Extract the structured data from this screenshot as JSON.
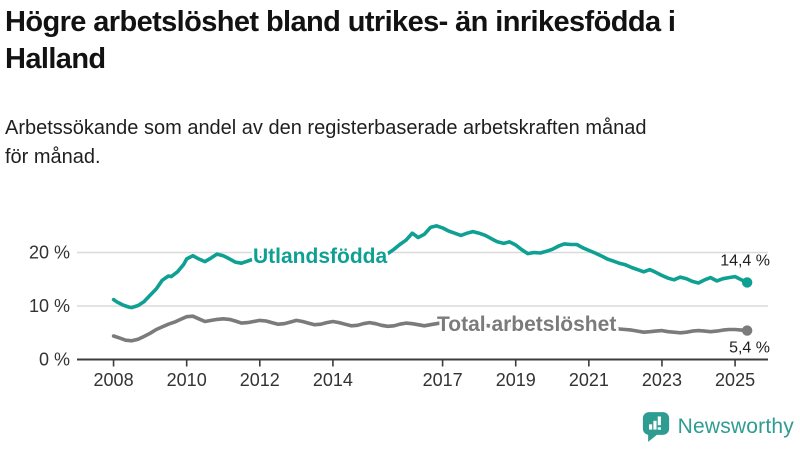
{
  "title": "Högre arbetslöshet bland utrikes- än inrikesfödda i\nHalland",
  "subtitle": "Arbetssökande som andel av den registerbaserade arbetskraften månad\nför månad.",
  "branding": {
    "logo_text": "Newsworthy",
    "logo_icon": "newsworthy-speech-bubble-bar-chart-icon",
    "logo_color": "#2f9c92"
  },
  "colors": {
    "series_teal": "#0fa094",
    "series_gray": "#7b7b7b",
    "gridline": "#dadada",
    "axis": "#3c3c3c",
    "tick_text": "#333333",
    "end_label_text": "#1f1f1f"
  },
  "chart_data": {
    "type": "line",
    "title": "Högre arbetslöshet bland utrikes- än inrikesfödda i Halland",
    "subtitle": "Arbetssökande som andel av den registerbaserade arbetskraften månad för månad.",
    "xlabel": "",
    "ylabel": "",
    "unit": "%",
    "grid": "horizontal",
    "legend_position": "on-chart-labels",
    "xlim": [
      2007.0,
      2025.9
    ],
    "ylim": [
      0,
      27
    ],
    "x_ticks": [
      2008,
      2010,
      2012,
      2014,
      2017,
      2019,
      2021,
      2023,
      2025
    ],
    "y_ticks": [
      {
        "value": 0,
        "label": "0 %"
      },
      {
        "value": 10,
        "label": "10 %"
      },
      {
        "value": 20,
        "label": "20 %"
      }
    ],
    "series": [
      {
        "name": "Utlandsfödda",
        "color": "#0fa094",
        "end_label": "14,4 %",
        "end_value": 14.4,
        "points": [
          [
            2008.0,
            11.2
          ],
          [
            2008.08,
            10.8
          ],
          [
            2008.25,
            10.2
          ],
          [
            2008.42,
            9.8
          ],
          [
            2008.5,
            9.7
          ],
          [
            2008.67,
            10.1
          ],
          [
            2008.83,
            10.8
          ],
          [
            2009.0,
            12.0
          ],
          [
            2009.17,
            13.2
          ],
          [
            2009.33,
            14.8
          ],
          [
            2009.5,
            15.6
          ],
          [
            2009.58,
            15.5
          ],
          [
            2009.75,
            16.4
          ],
          [
            2009.92,
            17.8
          ],
          [
            2010.0,
            18.8
          ],
          [
            2010.17,
            19.4
          ],
          [
            2010.33,
            18.8
          ],
          [
            2010.5,
            18.3
          ],
          [
            2010.67,
            19.0
          ],
          [
            2010.83,
            19.7
          ],
          [
            2011.0,
            19.4
          ],
          [
            2011.17,
            18.8
          ],
          [
            2011.33,
            18.2
          ],
          [
            2011.5,
            18.0
          ],
          [
            2011.67,
            18.4
          ],
          [
            2011.83,
            18.8
          ],
          [
            2012.0,
            19.0
          ],
          [
            2012.17,
            19.2
          ],
          [
            2012.33,
            18.8
          ],
          [
            2012.5,
            18.4
          ],
          [
            2012.67,
            18.2
          ],
          [
            2012.83,
            18.6
          ],
          [
            2013.0,
            19.1
          ],
          [
            2013.17,
            19.4
          ],
          [
            2013.33,
            19.0
          ],
          [
            2013.5,
            18.5
          ],
          [
            2013.67,
            18.2
          ],
          [
            2013.83,
            18.6
          ],
          [
            2014.0,
            19.0
          ],
          [
            2014.17,
            19.2
          ],
          [
            2014.33,
            18.8
          ],
          [
            2014.5,
            18.4
          ],
          [
            2014.67,
            18.2
          ],
          [
            2014.83,
            18.7
          ],
          [
            2015.0,
            19.3
          ],
          [
            2015.17,
            19.6
          ],
          [
            2015.33,
            19.3
          ],
          [
            2015.5,
            19.8
          ],
          [
            2015.67,
            20.6
          ],
          [
            2015.83,
            21.5
          ],
          [
            2016.0,
            22.3
          ],
          [
            2016.17,
            23.6
          ],
          [
            2016.33,
            22.8
          ],
          [
            2016.5,
            23.4
          ],
          [
            2016.67,
            24.7
          ],
          [
            2016.83,
            25.0
          ],
          [
            2017.0,
            24.6
          ],
          [
            2017.17,
            24.0
          ],
          [
            2017.33,
            23.6
          ],
          [
            2017.5,
            23.2
          ],
          [
            2017.67,
            23.6
          ],
          [
            2017.83,
            23.9
          ],
          [
            2018.0,
            23.6
          ],
          [
            2018.17,
            23.2
          ],
          [
            2018.33,
            22.6
          ],
          [
            2018.5,
            22.0
          ],
          [
            2018.67,
            21.7
          ],
          [
            2018.83,
            22.0
          ],
          [
            2019.0,
            21.4
          ],
          [
            2019.17,
            20.5
          ],
          [
            2019.33,
            19.8
          ],
          [
            2019.5,
            20.0
          ],
          [
            2019.67,
            19.9
          ],
          [
            2019.83,
            20.2
          ],
          [
            2020.0,
            20.6
          ],
          [
            2020.17,
            21.2
          ],
          [
            2020.33,
            21.6
          ],
          [
            2020.5,
            21.5
          ],
          [
            2020.67,
            21.5
          ],
          [
            2020.83,
            20.9
          ],
          [
            2021.0,
            20.4
          ],
          [
            2021.17,
            19.9
          ],
          [
            2021.33,
            19.4
          ],
          [
            2021.5,
            18.8
          ],
          [
            2021.67,
            18.4
          ],
          [
            2021.83,
            18.0
          ],
          [
            2022.0,
            17.7
          ],
          [
            2022.17,
            17.2
          ],
          [
            2022.33,
            16.8
          ],
          [
            2022.5,
            16.4
          ],
          [
            2022.67,
            16.8
          ],
          [
            2022.83,
            16.3
          ],
          [
            2023.0,
            15.7
          ],
          [
            2023.17,
            15.2
          ],
          [
            2023.33,
            14.9
          ],
          [
            2023.5,
            15.4
          ],
          [
            2023.67,
            15.1
          ],
          [
            2023.83,
            14.6
          ],
          [
            2024.0,
            14.3
          ],
          [
            2024.17,
            14.9
          ],
          [
            2024.33,
            15.3
          ],
          [
            2024.5,
            14.7
          ],
          [
            2024.67,
            15.1
          ],
          [
            2024.83,
            15.3
          ],
          [
            2025.0,
            15.5
          ],
          [
            2025.17,
            14.9
          ],
          [
            2025.33,
            14.4
          ]
        ]
      },
      {
        "name": "Total arbetslöshet",
        "color": "#7b7b7b",
        "end_label": "5,4 %",
        "end_value": 5.4,
        "points": [
          [
            2008.0,
            4.4
          ],
          [
            2008.17,
            4.0
          ],
          [
            2008.33,
            3.6
          ],
          [
            2008.5,
            3.5
          ],
          [
            2008.67,
            3.8
          ],
          [
            2008.83,
            4.3
          ],
          [
            2009.0,
            4.9
          ],
          [
            2009.17,
            5.6
          ],
          [
            2009.33,
            6.1
          ],
          [
            2009.5,
            6.6
          ],
          [
            2009.67,
            7.0
          ],
          [
            2009.83,
            7.5
          ],
          [
            2010.0,
            8.0
          ],
          [
            2010.17,
            8.1
          ],
          [
            2010.33,
            7.6
          ],
          [
            2010.5,
            7.1
          ],
          [
            2010.67,
            7.3
          ],
          [
            2010.83,
            7.5
          ],
          [
            2011.0,
            7.6
          ],
          [
            2011.17,
            7.5
          ],
          [
            2011.33,
            7.2
          ],
          [
            2011.5,
            6.8
          ],
          [
            2011.67,
            6.9
          ],
          [
            2011.83,
            7.1
          ],
          [
            2012.0,
            7.3
          ],
          [
            2012.17,
            7.2
          ],
          [
            2012.33,
            6.9
          ],
          [
            2012.5,
            6.6
          ],
          [
            2012.67,
            6.7
          ],
          [
            2012.83,
            7.0
          ],
          [
            2013.0,
            7.3
          ],
          [
            2013.17,
            7.1
          ],
          [
            2013.33,
            6.8
          ],
          [
            2013.5,
            6.5
          ],
          [
            2013.67,
            6.6
          ],
          [
            2013.83,
            6.9
          ],
          [
            2014.0,
            7.1
          ],
          [
            2014.17,
            6.9
          ],
          [
            2014.33,
            6.6
          ],
          [
            2014.5,
            6.3
          ],
          [
            2014.67,
            6.4
          ],
          [
            2014.83,
            6.7
          ],
          [
            2015.0,
            6.9
          ],
          [
            2015.17,
            6.7
          ],
          [
            2015.33,
            6.4
          ],
          [
            2015.5,
            6.2
          ],
          [
            2015.67,
            6.3
          ],
          [
            2015.83,
            6.6
          ],
          [
            2016.0,
            6.8
          ],
          [
            2016.17,
            6.7
          ],
          [
            2016.33,
            6.5
          ],
          [
            2016.5,
            6.3
          ],
          [
            2016.67,
            6.5
          ],
          [
            2016.83,
            6.7
          ],
          [
            2017.0,
            6.9
          ],
          [
            2017.17,
            6.7
          ],
          [
            2017.33,
            6.5
          ],
          [
            2017.5,
            6.3
          ],
          [
            2017.67,
            6.4
          ],
          [
            2017.83,
            6.6
          ],
          [
            2018.0,
            6.6
          ],
          [
            2018.17,
            6.4
          ],
          [
            2018.33,
            6.2
          ],
          [
            2018.5,
            6.0
          ],
          [
            2018.67,
            6.1
          ],
          [
            2018.83,
            6.3
          ],
          [
            2019.0,
            6.3
          ],
          [
            2019.17,
            6.1
          ],
          [
            2019.33,
            5.9
          ],
          [
            2019.5,
            5.8
          ],
          [
            2019.67,
            5.9
          ],
          [
            2019.83,
            6.0
          ],
          [
            2020.0,
            6.2
          ],
          [
            2020.17,
            6.6
          ],
          [
            2020.33,
            6.9
          ],
          [
            2020.5,
            7.0
          ],
          [
            2020.67,
            6.9
          ],
          [
            2020.83,
            6.8
          ],
          [
            2021.0,
            6.7
          ],
          [
            2021.17,
            6.5
          ],
          [
            2021.33,
            6.2
          ],
          [
            2021.5,
            5.9
          ],
          [
            2021.67,
            5.8
          ],
          [
            2021.83,
            5.7
          ],
          [
            2022.0,
            5.6
          ],
          [
            2022.17,
            5.5
          ],
          [
            2022.33,
            5.3
          ],
          [
            2022.5,
            5.1
          ],
          [
            2022.67,
            5.2
          ],
          [
            2022.83,
            5.3
          ],
          [
            2023.0,
            5.4
          ],
          [
            2023.17,
            5.2
          ],
          [
            2023.33,
            5.1
          ],
          [
            2023.5,
            5.0
          ],
          [
            2023.67,
            5.1
          ],
          [
            2023.83,
            5.3
          ],
          [
            2024.0,
            5.4
          ],
          [
            2024.17,
            5.3
          ],
          [
            2024.33,
            5.2
          ],
          [
            2024.5,
            5.3
          ],
          [
            2024.67,
            5.5
          ],
          [
            2024.83,
            5.6
          ],
          [
            2025.0,
            5.6
          ],
          [
            2025.17,
            5.5
          ],
          [
            2025.33,
            5.4
          ]
        ]
      }
    ]
  }
}
